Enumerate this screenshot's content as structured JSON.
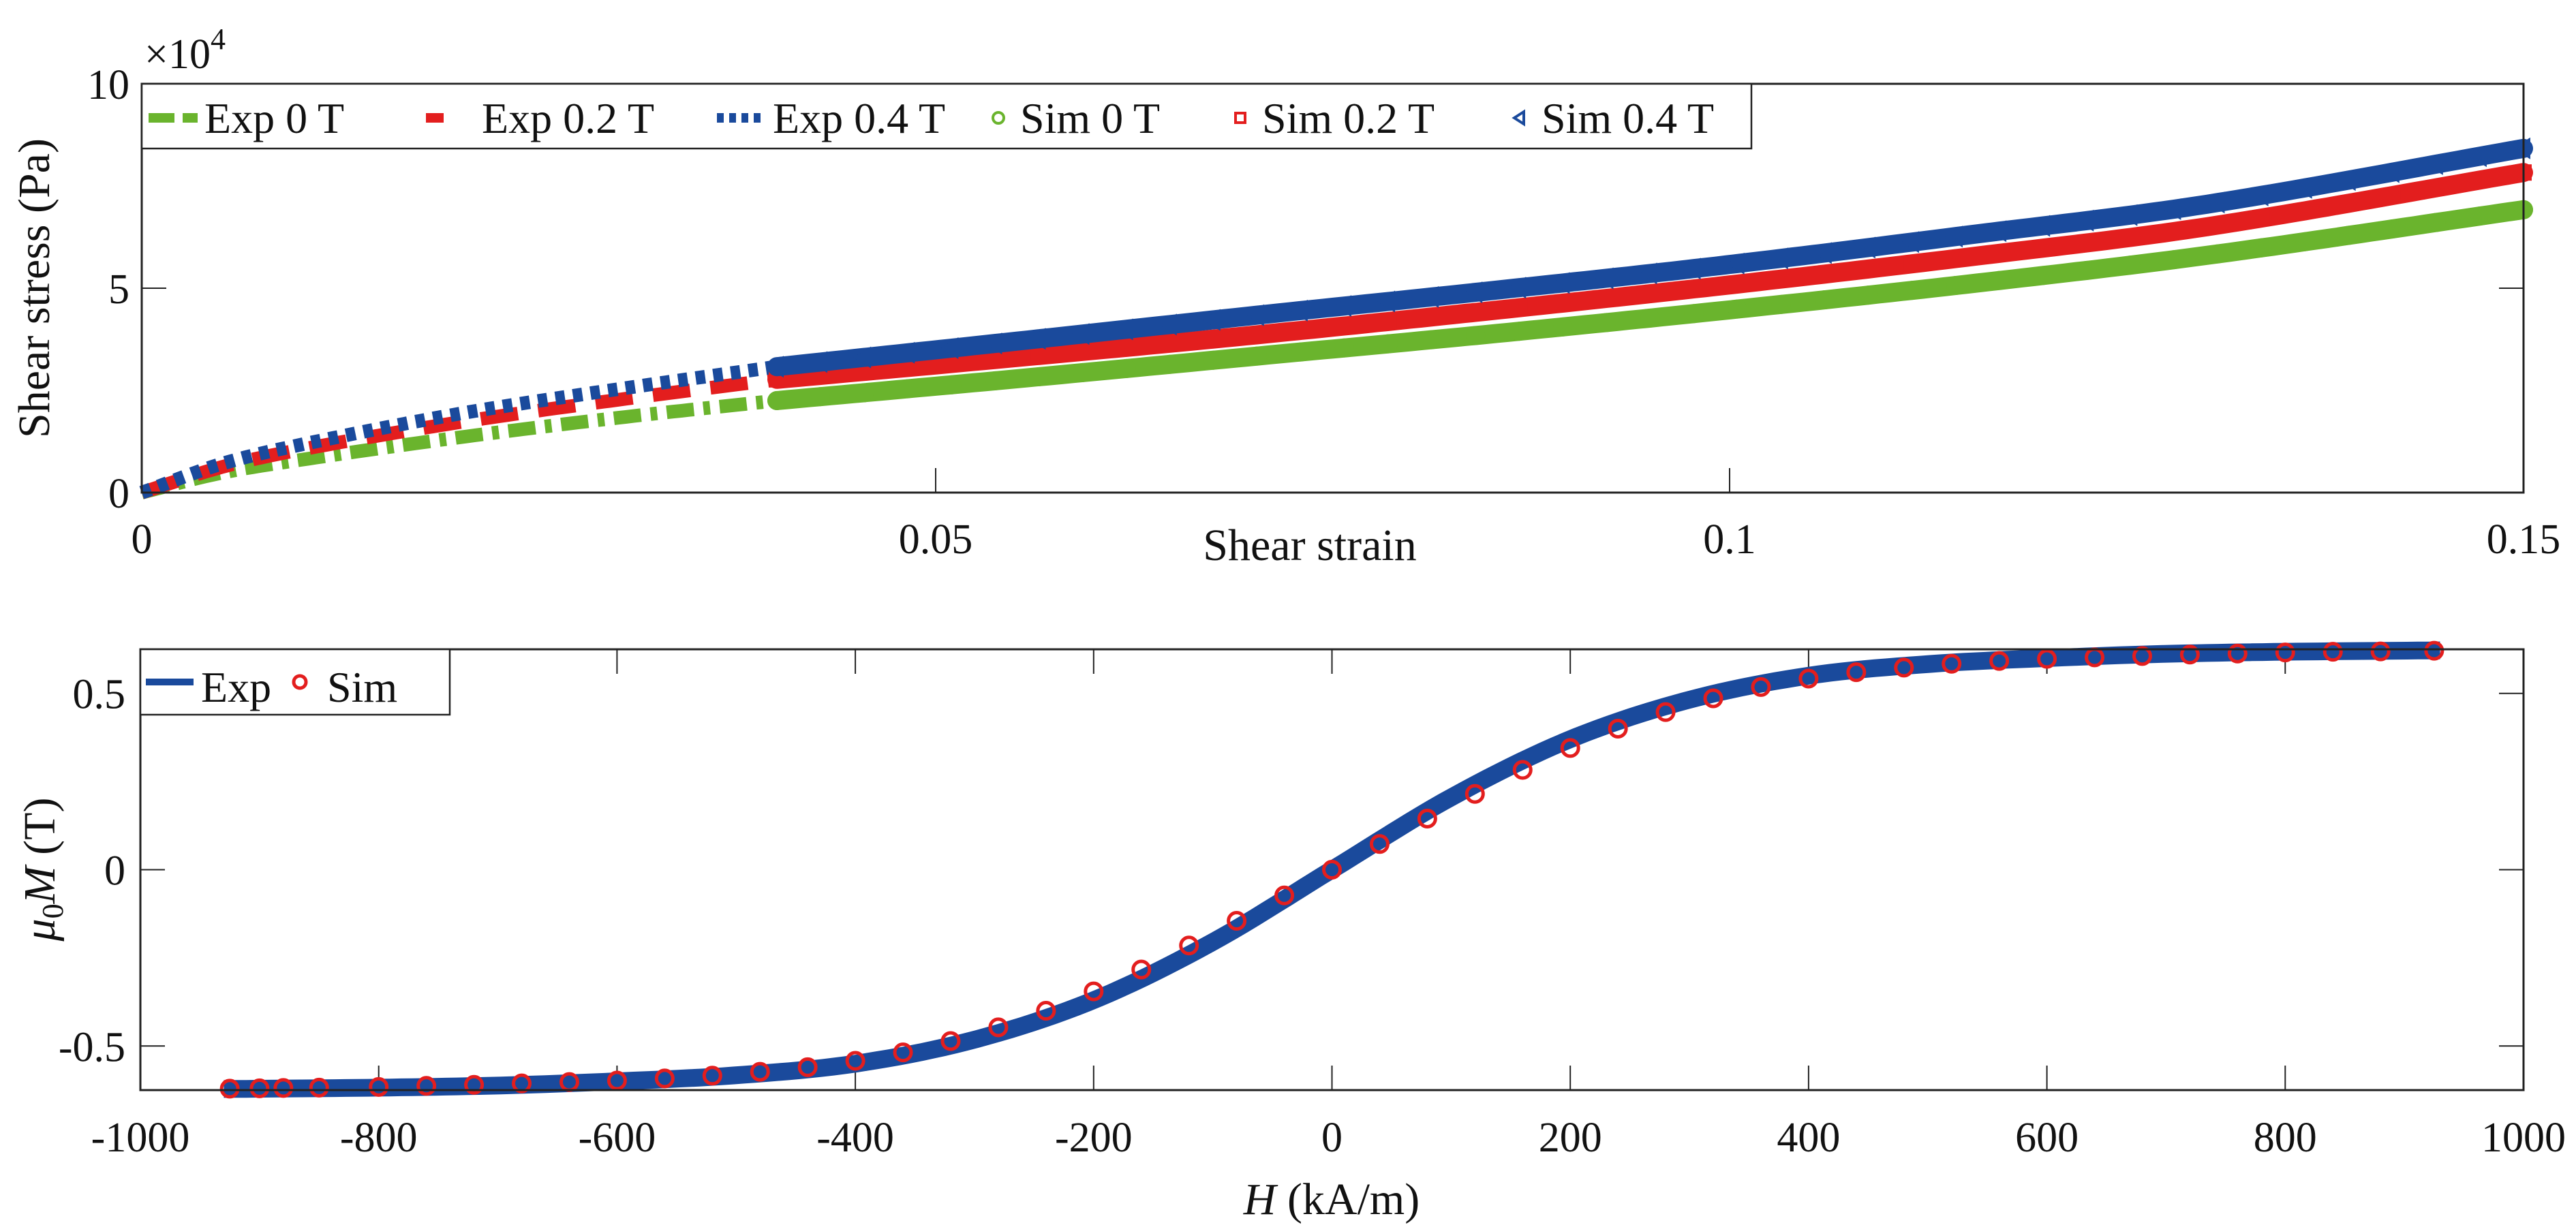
{
  "chart_data": [
    {
      "type": "line",
      "title": "",
      "xlabel": "Shear strain",
      "ylabel": "Shear stress (Pa)",
      "y_multiplier_label": "×10",
      "y_multiplier_exponent": "4",
      "xlim": [
        0,
        0.15
      ],
      "ylim": [
        0,
        10
      ],
      "xticks": [
        0,
        0.05,
        0.1,
        0.15
      ],
      "xtick_labels": [
        "0",
        "0.05",
        "0.1",
        "0.15"
      ],
      "yticks": [
        0,
        5,
        10
      ],
      "ytick_labels": [
        "0",
        "5",
        "10"
      ],
      "grid": false,
      "legend_position": "top-left (horizontal)",
      "series": [
        {
          "name": "Exp 0 T",
          "style": "dash-dot",
          "color": "#6ab42d",
          "x": [
            0,
            0.005,
            0.01,
            0.02,
            0.03,
            0.04
          ],
          "y": [
            0,
            0.48,
            0.8,
            1.35,
            1.83,
            2.25
          ]
        },
        {
          "name": "Exp 0.2 T",
          "style": "dashed",
          "color": "#e31e1e",
          "x": [
            0,
            0.005,
            0.01,
            0.02,
            0.03,
            0.04
          ],
          "y": [
            0,
            0.62,
            1.05,
            1.72,
            2.27,
            2.77
          ]
        },
        {
          "name": "Exp 0.4 T",
          "style": "dotted",
          "color": "#1a4a9c",
          "x": [
            0,
            0.005,
            0.01,
            0.02,
            0.03,
            0.04
          ],
          "y": [
            0,
            0.7,
            1.17,
            1.93,
            2.53,
            3.08
          ]
        },
        {
          "name": "Sim 0 T",
          "style": "marker-circle",
          "color": "#6ab42d",
          "x": [
            0.04,
            0.055,
            0.07,
            0.085,
            0.1,
            0.115,
            0.13,
            0.15
          ],
          "y": [
            2.25,
            2.78,
            3.33,
            3.88,
            4.47,
            5.1,
            5.8,
            6.92
          ]
        },
        {
          "name": "Sim 0.2 T",
          "style": "marker-square",
          "color": "#e31e1e",
          "x": [
            0.04,
            0.055,
            0.07,
            0.085,
            0.1,
            0.115,
            0.13,
            0.15
          ],
          "y": [
            2.77,
            3.3,
            3.85,
            4.45,
            5.08,
            5.76,
            6.5,
            7.83
          ]
        },
        {
          "name": "Sim 0.4 T",
          "style": "marker-triangle-left",
          "color": "#1a4a9c",
          "x": [
            0.04,
            0.055,
            0.07,
            0.085,
            0.1,
            0.115,
            0.13,
            0.15
          ],
          "y": [
            3.08,
            3.7,
            4.33,
            4.94,
            5.58,
            6.3,
            7.05,
            8.42
          ]
        }
      ]
    },
    {
      "type": "line",
      "title": "",
      "xlabel": "H (kA/m)",
      "ylabel": "μ0M (T)",
      "xlim": [
        -1000,
        1000
      ],
      "ylim": [
        -0.625,
        0.625
      ],
      "xticks": [
        -1000,
        -800,
        -600,
        -400,
        -200,
        0,
        200,
        400,
        600,
        800,
        1000
      ],
      "xtick_labels": [
        "-1000",
        "-800",
        "-600",
        "-400",
        "-200",
        "0",
        "200",
        "400",
        "600",
        "800",
        "1000"
      ],
      "yticks": [
        -0.5,
        0,
        0.5
      ],
      "ytick_labels": [
        "-0.5",
        "0",
        "0.5"
      ],
      "grid": false,
      "legend_position": "top-left",
      "series": [
        {
          "name": "Exp",
          "style": "solid",
          "color": "#1a4a9c",
          "x": [
            -930,
            -800,
            -700,
            -600,
            -500,
            -400,
            -300,
            -200,
            -100,
            0,
            100,
            200,
            300,
            400,
            500,
            600,
            700,
            800,
            930
          ],
          "y": [
            -0.622,
            -0.618,
            -0.612,
            -0.6,
            -0.583,
            -0.55,
            -0.482,
            -0.37,
            -0.205,
            0.0,
            0.205,
            0.37,
            0.482,
            0.55,
            0.583,
            0.6,
            0.612,
            0.618,
            0.622
          ]
        },
        {
          "name": "Sim",
          "style": "marker-circle",
          "color": "#e31e1e",
          "x": [
            -925,
            -900,
            -880,
            -850,
            -800,
            -760,
            -720,
            -680,
            -640,
            -600,
            -560,
            -520,
            -480,
            -440,
            -400,
            -360,
            -320,
            -280,
            -240,
            -200,
            -160,
            -120,
            -80,
            -40,
            0,
            40,
            80,
            120,
            160,
            200,
            240,
            280,
            320,
            360,
            400,
            440,
            480,
            520,
            560,
            600,
            640,
            680,
            720,
            760,
            800,
            840,
            880,
            925
          ],
          "y": [
            -0.621,
            -0.62,
            -0.619,
            -0.618,
            -0.616,
            -0.613,
            -0.61,
            -0.606,
            -0.602,
            -0.598,
            -0.592,
            -0.584,
            -0.573,
            -0.56,
            -0.542,
            -0.518,
            -0.486,
            -0.447,
            -0.4,
            -0.345,
            -0.283,
            -0.215,
            -0.145,
            -0.073,
            0.0,
            0.073,
            0.145,
            0.215,
            0.283,
            0.345,
            0.4,
            0.447,
            0.486,
            0.518,
            0.542,
            0.56,
            0.573,
            0.584,
            0.592,
            0.598,
            0.602,
            0.606,
            0.61,
            0.613,
            0.616,
            0.618,
            0.619,
            0.621
          ]
        }
      ]
    }
  ]
}
